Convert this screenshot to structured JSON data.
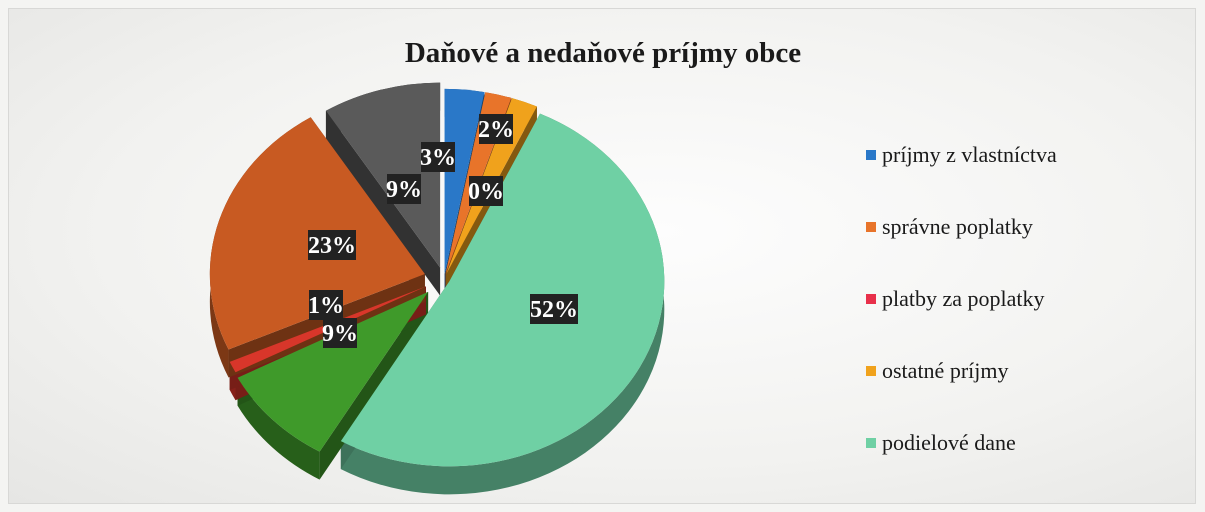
{
  "chart_data": {
    "type": "pie",
    "title": "Daňové a nedaňové príjmy obce",
    "legend_position": "right",
    "slices": [
      {
        "label": "príjmy z vlastníctva",
        "value": 3,
        "pct_label": "3%",
        "color": "#2a78c8"
      },
      {
        "label": "správne poplatky",
        "value": 2,
        "pct_label": "2%",
        "color": "#e8742a"
      },
      {
        "label": "platby za poplatky",
        "value": 0,
        "pct_label": "0%",
        "color": "#e8304a"
      },
      {
        "label": "ostatné príjmy",
        "value": 2,
        "pct_label": "",
        "color": "#f0a21c"
      },
      {
        "label": "podielové dane",
        "value": 52,
        "pct_label": "52%",
        "color": "#6fd0a4"
      },
      {
        "label": "",
        "value": 9,
        "pct_label": "9%",
        "color": "#3f9a2a"
      },
      {
        "label": "",
        "value": 1,
        "pct_label": "1%",
        "color": "#d8362a"
      },
      {
        "label": "",
        "value": 23,
        "pct_label": "23%",
        "color": "#c85a22"
      },
      {
        "label": "",
        "value": 9,
        "pct_label": "9%",
        "color": "#5a5a5a"
      }
    ]
  }
}
